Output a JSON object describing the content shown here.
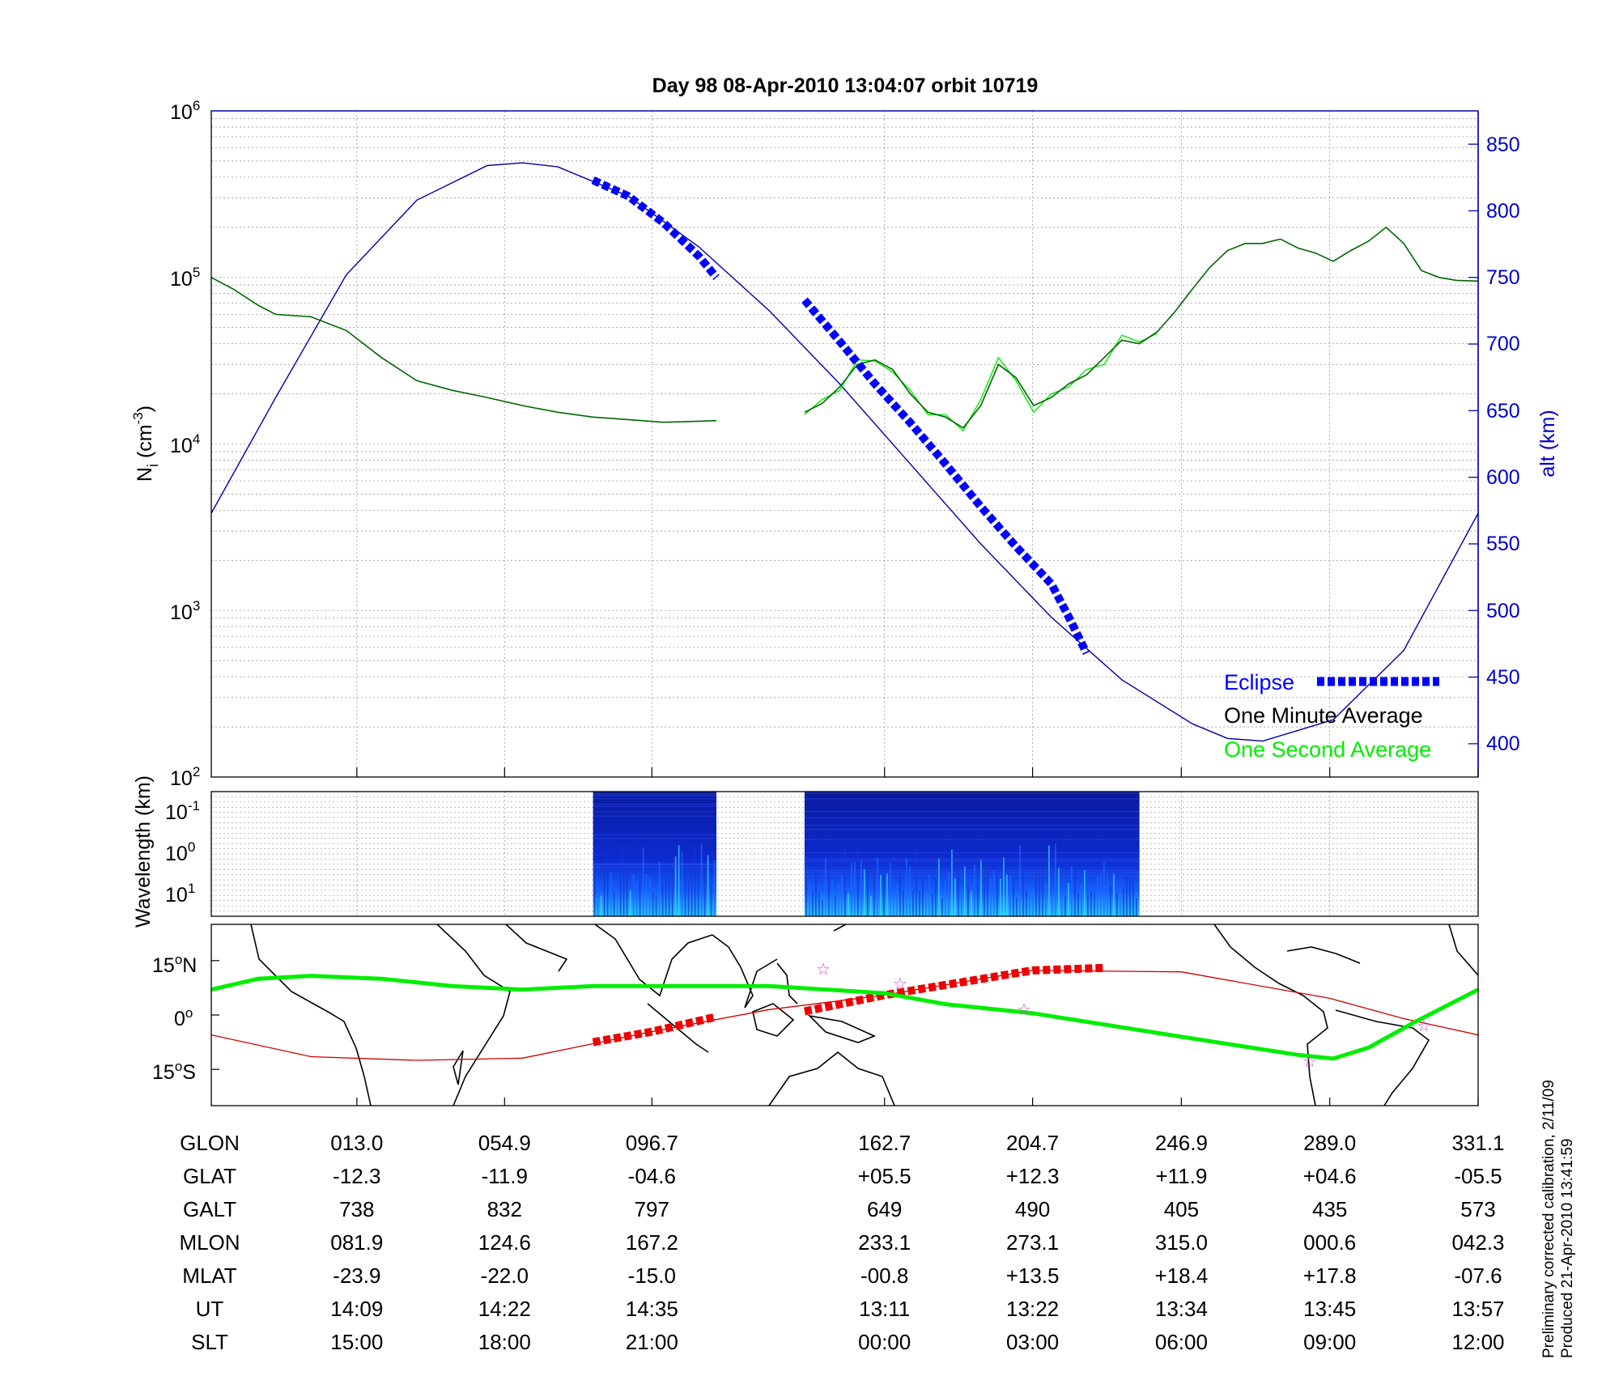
{
  "title": "Day 98  08-Apr-2010 13:04:07   orbit 10719",
  "colors": {
    "altitude_line": "#0000aa",
    "eclipse": "#0000ff",
    "one_minute_average": "#006600",
    "one_second_average": "#00ee00",
    "track_orbit": "#cc0000",
    "magnetic_equator": "#00ee00",
    "spectrogram_dark": "#00008b"
  },
  "panels": {
    "density": {
      "ylabel_main": "N",
      "ylabel_sub": "i",
      "ylabel_unit": " (cm",
      "ylabel_exp": "-3",
      "ylabel_close": ")",
      "y_ticks": [
        {
          "base": "10",
          "exp": "6"
        },
        {
          "base": "10",
          "exp": "5"
        },
        {
          "base": "10",
          "exp": "4"
        },
        {
          "base": "10",
          "exp": "3"
        },
        {
          "base": "10",
          "exp": "2"
        }
      ],
      "y2label": "alt (km)",
      "y2_ticks": [
        "850",
        "800",
        "750",
        "700",
        "650",
        "600",
        "550",
        "500",
        "450",
        "400"
      ],
      "legend": {
        "eclipse": "Eclipse",
        "one_minute": "One Minute Average",
        "one_second": "One Second Average"
      }
    },
    "spectrogram": {
      "ylabel": "Wavelength (km)",
      "y_ticks": [
        {
          "base": "10",
          "exp": "-1"
        },
        {
          "base": "10",
          "exp": "0"
        },
        {
          "base": "10",
          "exp": "1"
        }
      ]
    },
    "map": {
      "y_ticks": [
        {
          "value": "15",
          "suffix": "N"
        },
        {
          "value": "0",
          "suffix": ""
        },
        {
          "value": "15",
          "suffix": "S"
        }
      ]
    }
  },
  "table": {
    "row_labels": [
      "GLON",
      "GLAT",
      "GALT",
      "MLON",
      "MLAT",
      "UT",
      "SLT"
    ],
    "columns": [
      [
        "013.0",
        "-12.3",
        "738",
        "081.9",
        "-23.9",
        "14:09",
        "15:00"
      ],
      [
        "054.9",
        "-11.9",
        "832",
        "124.6",
        "-22.0",
        "14:22",
        "18:00"
      ],
      [
        "096.7",
        "-04.6",
        "797",
        "167.2",
        "-15.0",
        "14:35",
        "21:00"
      ],
      [
        "162.7",
        "+05.5",
        "649",
        "233.1",
        "-00.8",
        "13:11",
        "00:00"
      ],
      [
        "204.7",
        "+12.3",
        "490",
        "273.1",
        "+13.5",
        "13:22",
        "03:00"
      ],
      [
        "246.9",
        "+11.9",
        "405",
        "315.0",
        "+18.4",
        "13:34",
        "06:00"
      ],
      [
        "289.0",
        "+04.6",
        "435",
        "000.6",
        "+17.8",
        "13:45",
        "09:00"
      ],
      [
        "331.1",
        "-05.5",
        "573",
        "042.3",
        "-07.6",
        "13:57",
        "12:00"
      ]
    ]
  },
  "footnotes": {
    "calibration": "Preliminary corrected calibration, 2/11/09",
    "produced": "Produced 21-Apr-2010 13:41:59"
  },
  "chart_data": [
    {
      "type": "line",
      "panel": "density",
      "title": "Day 98  08-Apr-2010 13:04:07   orbit 10719",
      "xlabel": "",
      "ylabel": "Ni (cm-3)",
      "yscale": "log",
      "ylim": [
        100,
        1000000
      ],
      "y2label": "alt (km)",
      "y2lim": [
        375,
        875
      ],
      "x_ticks_glon": [
        13.0,
        54.9,
        96.7,
        162.7,
        204.7,
        246.9,
        289.0,
        331.1
      ],
      "xlim_glon": [
        -28.3,
        331.1
      ],
      "grid": true,
      "legend_position": "bottom-right",
      "series": [
        {
          "name": "One Minute Average",
          "axis": "left",
          "segments": [
            {
              "x": [
                -28.3,
                -22,
                -15,
                -10,
                0,
                10,
                20,
                30,
                40,
                50,
                60,
                70,
                80,
                90,
                100,
                110,
                115
              ],
              "y": [
                100000,
                85000,
                68000,
                60000,
                58000,
                48000,
                33000,
                24000,
                21000,
                19000,
                17000,
                15500,
                14500,
                14000,
                13500,
                13700,
                13800
              ]
            },
            {
              "x": [
                140,
                145,
                150,
                155,
                160,
                165,
                170,
                175,
                180,
                185,
                190,
                195,
                200,
                205,
                210,
                215,
                220,
                225,
                230,
                235,
                240,
                245,
                250,
                255,
                260,
                265,
                270,
                275,
                280,
                285,
                290,
                295,
                300,
                305,
                310,
                315,
                320,
                325,
                331.1
              ],
              "y": [
                15500,
                17500,
                22000,
                30000,
                32000,
                28000,
                20000,
                15500,
                14500,
                12500,
                17000,
                30000,
                25000,
                17000,
                19000,
                23000,
                26000,
                33000,
                42000,
                40000,
                47000,
                62000,
                85000,
                115000,
                145000,
                160000,
                160000,
                170000,
                150000,
                140000,
                125000,
                145000,
                165000,
                200000,
                160000,
                110000,
                100000,
                96000,
                95000
              ]
            }
          ]
        },
        {
          "name": "One Second Average",
          "axis": "left",
          "segments": [
            {
              "x": [
                140,
                145,
                150,
                155,
                160,
                165,
                170,
                175,
                180,
                185,
                190,
                195,
                200,
                205,
                210,
                215,
                220,
                225,
                230,
                235,
                240
              ],
              "y": [
                15000,
                18500,
                21000,
                32000,
                31500,
                27000,
                21000,
                15000,
                15000,
                12000,
                18500,
                33000,
                24000,
                15500,
                20000,
                22000,
                28000,
                30000,
                45000,
                41000,
                46000
              ]
            }
          ]
        },
        {
          "name": "Altitude",
          "axis": "right",
          "x": [
            -28.3,
            -10,
            10,
            30,
            50,
            60,
            70,
            90,
            110,
            130,
            150,
            170,
            190,
            210,
            230,
            250,
            260,
            270,
            290,
            310,
            331.1
          ],
          "y": [
            573,
            660,
            752,
            808,
            834,
            836,
            833,
            811,
            773,
            725,
            670,
            610,
            550,
            495,
            448,
            415,
            404,
            402,
            418,
            470,
            573
          ]
        },
        {
          "name": "Eclipse",
          "axis": "right",
          "segments": [
            {
              "x": [
                80,
                90,
                100,
                110,
                115
              ],
              "y": [
                823,
                811,
                791,
                766,
                750
              ]
            },
            {
              "x": [
                140,
                150,
                160,
                170,
                180,
                190,
                200,
                210,
                215,
                220
              ],
              "y": [
                733,
                702,
                670,
                641,
                610,
                578,
                548,
                520,
                495,
                468
              ]
            }
          ]
        }
      ]
    },
    {
      "type": "heatmap",
      "panel": "spectrogram",
      "ylabel": "Wavelength (km)",
      "yscale": "log",
      "y_ticks": [
        "10^-1",
        "10^0",
        "10^1"
      ],
      "data_segments_glon": [
        [
          80,
          115
        ],
        [
          140,
          235
        ]
      ]
    },
    {
      "type": "line",
      "panel": "map",
      "y_ticks": [
        "15°N",
        "0°",
        "15°S"
      ],
      "ylim": [
        -25,
        25
      ],
      "xlim_glon": [
        -28.3,
        331.1
      ],
      "series": [
        {
          "name": "Satellite track",
          "x": [
            -28.3,
            0,
            30,
            60,
            96.7,
            130,
            162.7,
            204.7,
            246.9,
            289.0,
            310,
            331.1
          ],
          "y": [
            -5.5,
            -11.5,
            -12.5,
            -11.9,
            -4.6,
            1.5,
            5.5,
            12.3,
            11.9,
            4.6,
            -1,
            -5.5
          ]
        },
        {
          "name": "Satellite track (eclipse)",
          "segments": [
            {
              "x": [
                80,
                96.7,
                115
              ],
              "y": [
                -7.5,
                -4.6,
                -0.5
              ]
            },
            {
              "x": [
                140,
                162.7,
                204.7,
                225
              ],
              "y": [
                1.0,
                5.5,
                12.3,
                13.0
              ]
            }
          ]
        },
        {
          "name": "Magnetic equator",
          "x": [
            -28.3,
            -15,
            0,
            20,
            40,
            60,
            80,
            100,
            130,
            162.7,
            180,
            204.7,
            246.9,
            280,
            290,
            300,
            313,
            331.1
          ],
          "y": [
            7,
            10,
            10.8,
            10,
            8,
            7,
            8,
            8,
            8,
            6,
            3,
            0.5,
            -6,
            -11,
            -12,
            -9,
            -2,
            7
          ]
        }
      ]
    }
  ]
}
